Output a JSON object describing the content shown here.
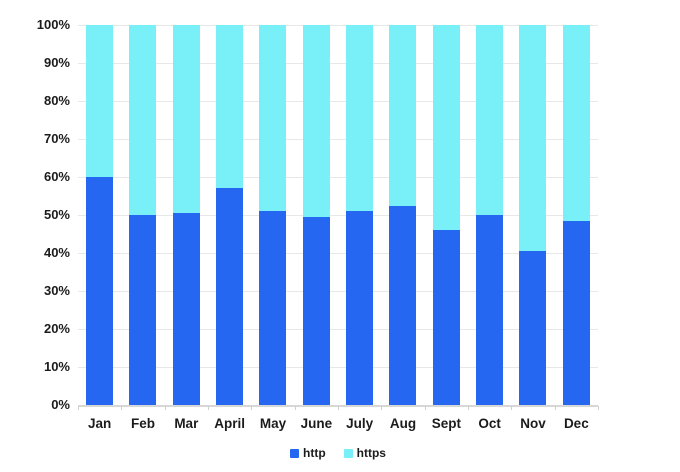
{
  "chart_data": {
    "type": "bar",
    "stacked": true,
    "title": "",
    "xlabel": "",
    "ylabel": "",
    "categories": [
      "Jan",
      "Feb",
      "Mar",
      "April",
      "May",
      "June",
      "July",
      "Aug",
      "Sept",
      "Oct",
      "Nov",
      "Dec"
    ],
    "series": [
      {
        "name": "http",
        "color": "#2567f0",
        "values": [
          60,
          50,
          50.5,
          57,
          51,
          49.5,
          51,
          52.5,
          46,
          50,
          40.5,
          48.5
        ]
      },
      {
        "name": "https",
        "color": "#79f0f7",
        "values": [
          40,
          50,
          49.5,
          43,
          49,
          50.5,
          49,
          47.5,
          54,
          50,
          59.5,
          51.5
        ]
      }
    ],
    "ylim": [
      0,
      100
    ],
    "ytick_step": 10,
    "ytick_labels": [
      "0%",
      "10%",
      "20%",
      "30%",
      "40%",
      "50%",
      "60%",
      "70%",
      "80%",
      "90%",
      "100%"
    ],
    "grid": true,
    "legend_position": "bottom-center"
  },
  "palette": {
    "http": "#2567f0",
    "https": "#79f0f7",
    "gridline": "#e8e8e8",
    "axis_baseline": "#d7d7d7",
    "tick": "#cfcfcf",
    "text": "#1b1b1b",
    "background": "#ffffff"
  }
}
